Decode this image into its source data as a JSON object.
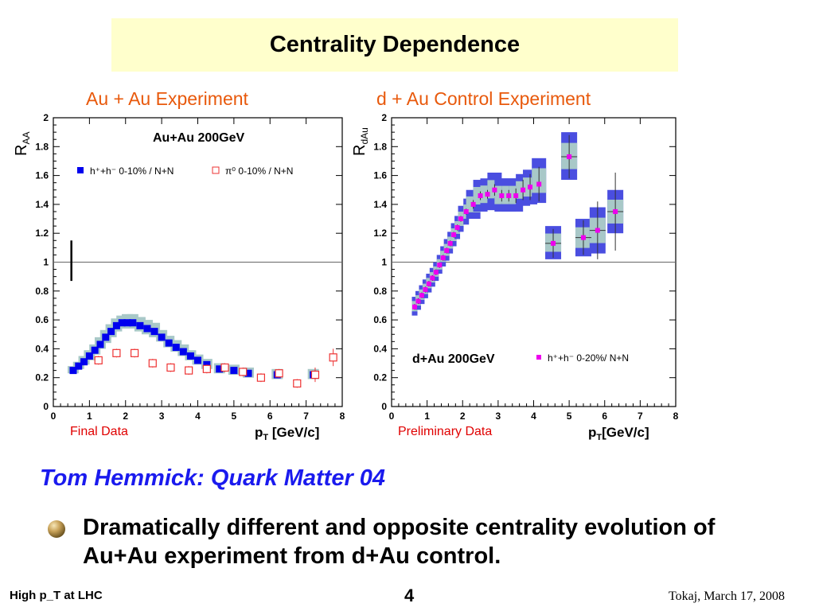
{
  "slide": {
    "title": "Centrality Dependence",
    "subhead": "Tom Hemmick:  Quark Matter 04",
    "bullet": "Dramatically different and opposite centrality evolution of  Au+Au experiment from d+Au control.",
    "footer_left": "High p_T at LHC",
    "footer_center": "4",
    "footer_right": "Tokaj, March 17, 2008"
  },
  "colors": {
    "title_bg": "#ffffcc",
    "panel_title": "#e8590c",
    "note": "#e00000",
    "subhead": "#1a1aee",
    "blue_marker": "#0000ee",
    "red_marker": "#ee3333",
    "magenta_marker": "#ee00ee",
    "band_gray": "#a8c8c8",
    "band_blue": "#4a4ee0"
  },
  "chart_data": [
    {
      "type": "scatter",
      "panel_title": "Au + Au Experiment",
      "note": "Final Data",
      "inner_title": "Au+Au 200GeV",
      "ylabel_main": "R",
      "ylabel_sub": "AA",
      "xlabel": "p",
      "xlabel_sub": "T",
      "xlabel_rest": " [GeV/c]",
      "xlim": [
        0,
        8
      ],
      "ylim": [
        0,
        2
      ],
      "xticks": [
        "0",
        "1",
        "2",
        "3",
        "4",
        "5",
        "6",
        "7",
        "8"
      ],
      "yticks": [
        "0",
        "0.2",
        "0.4",
        "0.6",
        "0.8",
        "1",
        "1.2",
        "1.4",
        "1.6",
        "1.8",
        "2"
      ],
      "reference_line": 1,
      "series": [
        {
          "name": "h⁺+h⁻ 0-10% / N+N",
          "marker": "filled-square",
          "color": "#0000ee",
          "x": [
            0.55,
            0.7,
            0.85,
            1.0,
            1.15,
            1.3,
            1.45,
            1.6,
            1.75,
            1.9,
            2.05,
            2.2,
            2.4,
            2.6,
            2.8,
            3.0,
            3.2,
            3.4,
            3.6,
            3.8,
            4.0,
            4.25,
            4.6,
            5.0,
            5.4,
            6.2,
            7.2
          ],
          "y": [
            0.25,
            0.28,
            0.31,
            0.35,
            0.39,
            0.43,
            0.48,
            0.52,
            0.56,
            0.58,
            0.58,
            0.58,
            0.56,
            0.54,
            0.52,
            0.48,
            0.44,
            0.41,
            0.38,
            0.35,
            0.32,
            0.29,
            0.26,
            0.25,
            0.23,
            0.22,
            0.22
          ],
          "band_low": [
            0.23,
            0.26,
            0.29,
            0.32,
            0.36,
            0.4,
            0.44,
            0.48,
            0.52,
            0.54,
            0.54,
            0.54,
            0.52,
            0.5,
            0.48,
            0.45,
            0.41,
            0.38,
            0.35,
            0.32,
            0.29,
            0.26,
            0.23,
            0.22,
            0.2,
            0.19,
            0.19
          ],
          "band_high": [
            0.28,
            0.31,
            0.35,
            0.39,
            0.43,
            0.48,
            0.53,
            0.57,
            0.61,
            0.63,
            0.64,
            0.64,
            0.62,
            0.6,
            0.58,
            0.53,
            0.49,
            0.46,
            0.43,
            0.39,
            0.36,
            0.33,
            0.3,
            0.29,
            0.27,
            0.26,
            0.26
          ]
        },
        {
          "name": "π⁰ 0-10% / N+N",
          "marker": "open-square",
          "color": "#ee3333",
          "x": [
            1.25,
            1.75,
            2.25,
            2.75,
            3.25,
            3.75,
            4.25,
            4.75,
            5.25,
            5.75,
            6.25,
            6.75,
            7.25,
            7.75
          ],
          "y": [
            0.32,
            0.37,
            0.37,
            0.3,
            0.27,
            0.25,
            0.26,
            0.27,
            0.24,
            0.2,
            0.23,
            0.16,
            0.22,
            0.34
          ],
          "err": [
            0.03,
            0.03,
            0.03,
            0.03,
            0.03,
            0.03,
            0.03,
            0.03,
            0.03,
            0.03,
            0.03,
            0.03,
            0.05,
            0.06
          ]
        }
      ],
      "normalization_bar": {
        "x": 0.5,
        "y_low": 0.87,
        "y_high": 1.15
      }
    },
    {
      "type": "scatter",
      "panel_title": "d + Au Control Experiment",
      "note": "Preliminary Data",
      "inner_title": "d+Au 200GeV",
      "ylabel_main": "R",
      "ylabel_sub": "dAu",
      "xlabel": "p",
      "xlabel_sub": "T",
      "xlabel_rest": "[GeV/c]",
      "xlim": [
        0,
        8
      ],
      "ylim": [
        0,
        2
      ],
      "xticks": [
        "0",
        "1",
        "2",
        "3",
        "4",
        "5",
        "6",
        "7",
        "8"
      ],
      "yticks": [
        "0",
        "0.2",
        "0.4",
        "0.6",
        "0.8",
        "1",
        "1.2",
        "1.4",
        "1.6",
        "1.8",
        "2"
      ],
      "reference_line": 1,
      "series": [
        {
          "name": "h⁺+h⁻ 0-20%/ N+N",
          "marker": "filled-square",
          "color": "#ee00ee",
          "x": [
            0.65,
            0.75,
            0.85,
            0.95,
            1.05,
            1.15,
            1.25,
            1.35,
            1.45,
            1.55,
            1.65,
            1.75,
            1.85,
            1.95,
            2.1,
            2.3,
            2.5,
            2.7,
            2.9,
            3.1,
            3.3,
            3.5,
            3.7,
            3.9,
            4.15,
            4.55,
            5.0,
            5.4,
            5.8,
            6.3
          ],
          "y": [
            0.69,
            0.73,
            0.77,
            0.81,
            0.85,
            0.89,
            0.93,
            0.98,
            1.03,
            1.08,
            1.13,
            1.19,
            1.24,
            1.3,
            1.35,
            1.4,
            1.46,
            1.47,
            1.5,
            1.46,
            1.46,
            1.46,
            1.5,
            1.52,
            1.54,
            1.13,
            1.73,
            1.17,
            1.22,
            1.35
          ],
          "band_low": [
            0.63,
            0.67,
            0.71,
            0.75,
            0.79,
            0.83,
            0.87,
            0.92,
            0.97,
            1.01,
            1.06,
            1.11,
            1.16,
            1.21,
            1.26,
            1.3,
            1.35,
            1.36,
            1.39,
            1.35,
            1.35,
            1.35,
            1.39,
            1.4,
            1.41,
            1.02,
            1.57,
            1.04,
            1.06,
            1.2
          ],
          "band_high": [
            0.76,
            0.8,
            0.84,
            0.88,
            0.92,
            0.96,
            1.0,
            1.05,
            1.11,
            1.16,
            1.21,
            1.27,
            1.32,
            1.39,
            1.44,
            1.5,
            1.57,
            1.58,
            1.62,
            1.58,
            1.58,
            1.58,
            1.61,
            1.64,
            1.72,
            1.25,
            1.9,
            1.3,
            1.38,
            1.5
          ],
          "err": [
            0.02,
            0.02,
            0.02,
            0.02,
            0.02,
            0.02,
            0.02,
            0.02,
            0.02,
            0.02,
            0.02,
            0.02,
            0.02,
            0.02,
            0.02,
            0.03,
            0.03,
            0.03,
            0.04,
            0.04,
            0.04,
            0.05,
            0.07,
            0.09,
            0.12,
            0.1,
            0.15,
            0.12,
            0.2,
            0.27
          ]
        }
      ]
    }
  ]
}
